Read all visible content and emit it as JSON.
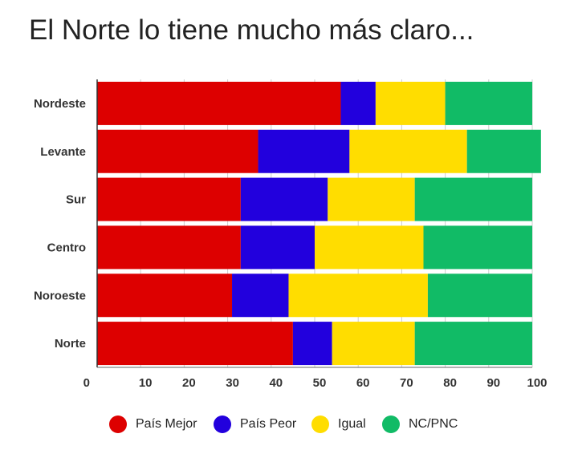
{
  "chart_data": {
    "type": "bar",
    "orientation": "horizontal",
    "stacked": true,
    "title": "El Norte lo tiene mucho más claro...",
    "categories": [
      "Nordeste",
      "Levante",
      "Sur",
      "Centro",
      "Noroeste",
      "Norte"
    ],
    "series": [
      {
        "name": "País Mejor",
        "color": "#dd0000",
        "values": [
          56,
          37,
          33,
          33,
          31,
          45
        ]
      },
      {
        "name": "País Peor",
        "color": "#2200dd",
        "values": [
          8,
          21,
          20,
          17,
          13,
          9
        ]
      },
      {
        "name": "Igual",
        "color": "#ffdd00",
        "values": [
          16,
          27,
          20,
          25,
          32,
          19
        ]
      },
      {
        "name": "NC/PNC",
        "color": "#11bb66",
        "values": [
          20,
          17,
          27,
          25,
          24,
          27
        ]
      }
    ],
    "xlim": [
      0,
      100
    ],
    "x_ticks": [
      "0",
      "10",
      "20",
      "30",
      "40",
      "50",
      "60",
      "70",
      "80",
      "90",
      "100"
    ],
    "grid": true,
    "legend_position": "bottom"
  }
}
